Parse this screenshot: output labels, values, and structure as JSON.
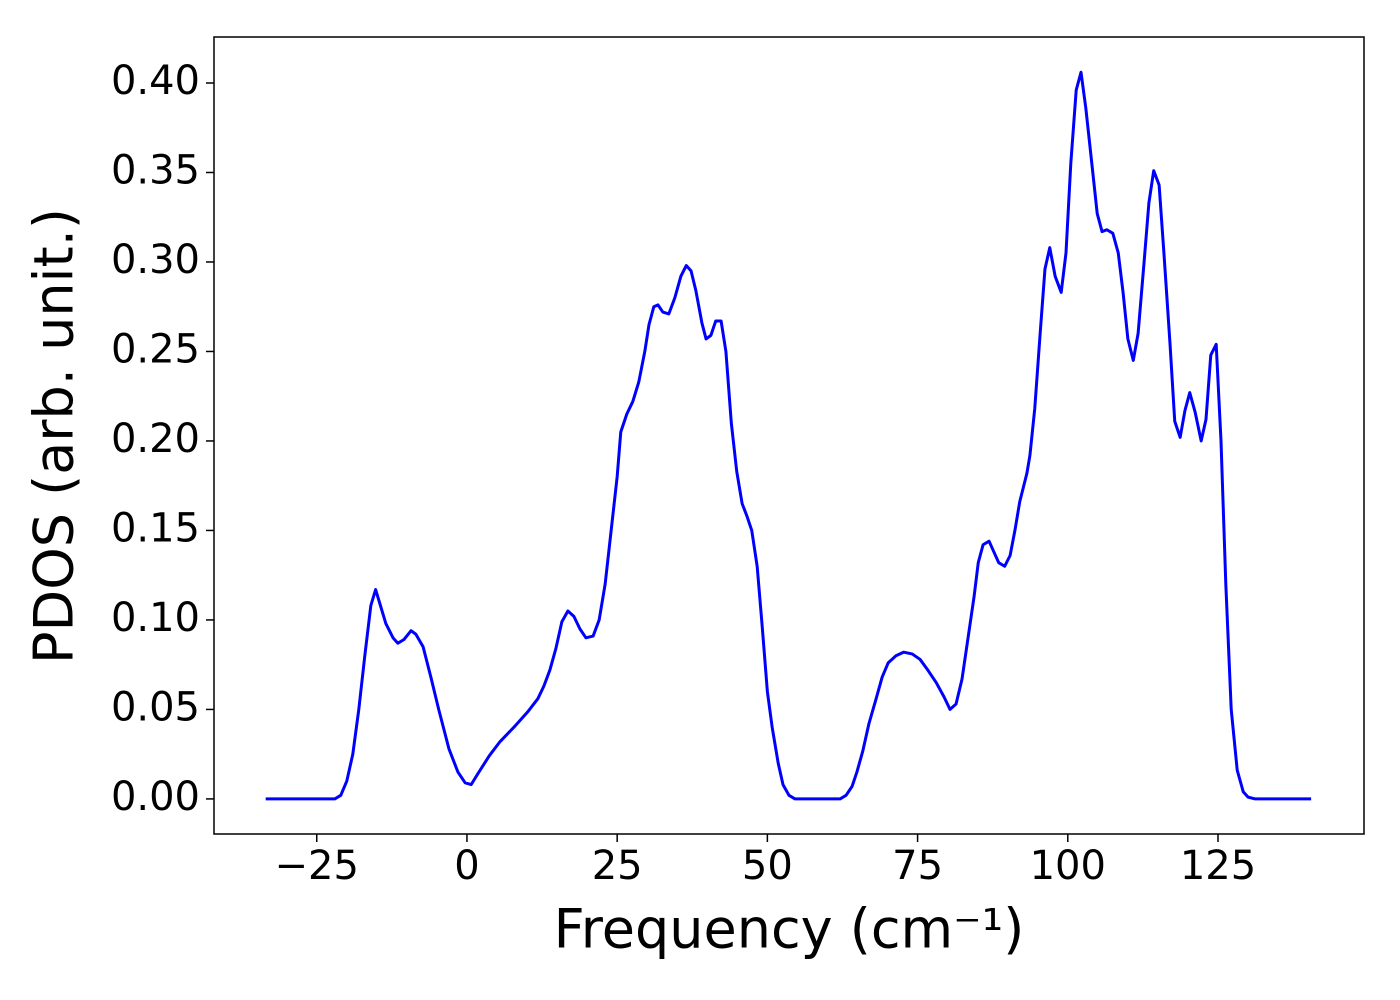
{
  "chart_data": {
    "type": "line",
    "xlabel": "Frequency (cm⁻¹)",
    "ylabel": "PDOS (arb. unit.)",
    "xlim": [
      -42.1,
      149.3
    ],
    "ylim": [
      -0.0196,
      0.4257
    ],
    "xticks": [
      {
        "value": -25,
        "label": "−25"
      },
      0,
      25,
      50,
      75,
      100,
      125
    ],
    "yticks": [
      {
        "value": 0,
        "label": "0.00"
      },
      {
        "value": 0.05,
        "label": "0.05"
      },
      {
        "value": 0.1,
        "label": "0.10"
      },
      {
        "value": 0.15,
        "label": "0.15"
      },
      {
        "value": 0.2,
        "label": "0.20"
      },
      {
        "value": 0.25,
        "label": "0.25"
      },
      {
        "value": 0.3,
        "label": "0.30"
      },
      {
        "value": 0.35,
        "label": "0.35"
      },
      {
        "value": 0.4,
        "label": "0.40"
      }
    ],
    "x": [
      -33.5,
      -22,
      -21,
      -20,
      -19,
      -18,
      -17,
      -16,
      -15.2,
      -13.5,
      -12.3,
      -11.5,
      -10.5,
      -9.3,
      -8.5,
      -7.3,
      -6,
      -4.7,
      -3,
      -1.5,
      -0.3,
      0.7,
      1.8,
      3.7,
      5.5,
      7.8,
      10.2,
      11.8,
      12.8,
      13.8,
      14.8,
      15.8,
      16.8,
      17.8,
      18.8,
      19.8,
      21,
      22,
      23,
      24,
      25,
      25.6,
      26.6,
      27.6,
      28.6,
      29.6,
      30.3,
      31.1,
      31.8,
      32.6,
      33.6,
      34.6,
      35.6,
      36.5,
      37.3,
      38.1,
      39.1,
      39.8,
      40.6,
      41.4,
      42.3,
      43.1,
      44,
      44.9,
      45.8,
      46.6,
      47.4,
      48.3,
      49.1,
      50,
      50.8,
      51.8,
      52.6,
      53.6,
      54.6,
      62.1,
      63.1,
      64.1,
      64.9,
      65.9,
      66.9,
      68.1,
      69.1,
      70.1,
      71.4,
      72.7,
      74.1,
      75.4,
      76.7,
      78.1,
      79.4,
      80.4,
      81.4,
      82.4,
      83.4,
      84.4,
      85.1,
      85.9,
      86.9,
      87.7,
      88.5,
      89.5,
      90.4,
      91.2,
      92,
      93.2,
      93.7,
      94.5,
      95.4,
      96.2,
      97,
      97.9,
      98.9,
      99.7,
      100.5,
      101.4,
      102.2,
      103,
      104,
      104.9,
      105.7,
      106.5,
      107.5,
      108.4,
      109.2,
      110,
      110.9,
      111.7,
      112.7,
      113.5,
      114.3,
      115.2,
      116,
      117,
      117.8,
      118.7,
      119.5,
      120.3,
      121.2,
      122.2,
      123,
      123.8,
      124.7,
      125.5,
      126.3,
      127.2,
      128.2,
      129.2,
      130,
      131.2,
      140.5
    ],
    "series": [
      {
        "color": "#0000ff",
        "values": [
          0,
          0,
          0.002,
          0.01,
          0.025,
          0.05,
          0.08,
          0.108,
          0.117,
          0.098,
          0.09,
          0.087,
          0.089,
          0.094,
          0.092,
          0.085,
          0.068,
          0.05,
          0.028,
          0.015,
          0.009,
          0.008,
          0.014,
          0.024,
          0.032,
          0.04,
          0.049,
          0.056,
          0.063,
          0.072,
          0.084,
          0.099,
          0.105,
          0.102,
          0.095,
          0.09,
          0.091,
          0.1,
          0.12,
          0.15,
          0.18,
          0.205,
          0.215,
          0.222,
          0.233,
          0.25,
          0.265,
          0.275,
          0.276,
          0.272,
          0.271,
          0.28,
          0.292,
          0.298,
          0.295,
          0.284,
          0.266,
          0.257,
          0.259,
          0.267,
          0.267,
          0.25,
          0.21,
          0.183,
          0.165,
          0.158,
          0.15,
          0.13,
          0.098,
          0.06,
          0.04,
          0.02,
          0.008,
          0.002,
          0,
          0,
          0.002,
          0.007,
          0.015,
          0.027,
          0.042,
          0.056,
          0.068,
          0.076,
          0.08,
          0.082,
          0.081,
          0.078,
          0.072,
          0.065,
          0.057,
          0.05,
          0.053,
          0.067,
          0.09,
          0.113,
          0.132,
          0.142,
          0.144,
          0.138,
          0.132,
          0.13,
          0.136,
          0.15,
          0.166,
          0.182,
          0.192,
          0.218,
          0.26,
          0.296,
          0.308,
          0.292,
          0.283,
          0.305,
          0.355,
          0.396,
          0.406,
          0.386,
          0.355,
          0.327,
          0.317,
          0.318,
          0.316,
          0.305,
          0.283,
          0.257,
          0.245,
          0.26,
          0.3,
          0.333,
          0.351,
          0.343,
          0.305,
          0.255,
          0.211,
          0.202,
          0.217,
          0.227,
          0.216,
          0.2,
          0.212,
          0.248,
          0.254,
          0.2,
          0.12,
          0.05,
          0.016,
          0.004,
          0.001,
          0,
          0
        ]
      }
    ]
  }
}
